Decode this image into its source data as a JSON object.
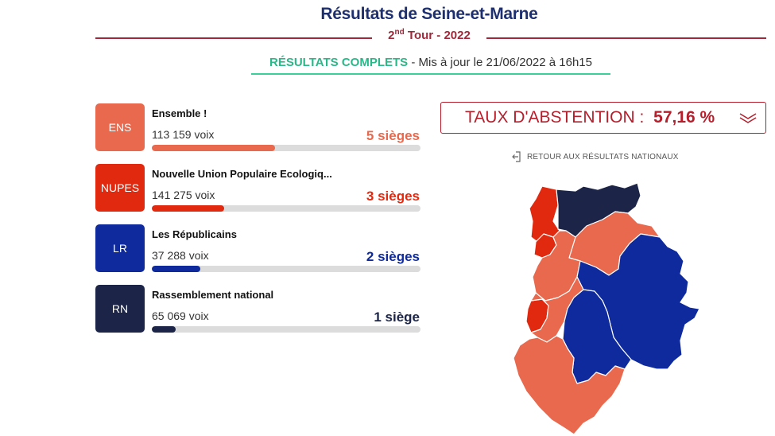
{
  "header": {
    "title": "Résultats de Seine-et-Marne",
    "round_prefix": "2",
    "round_sup": "nd",
    "round_suffix": " Tour - 2022"
  },
  "status": {
    "complete": "RÉSULTATS COMPLETS",
    "updated": " - Mis à jour le 21/06/2022 à 16h15"
  },
  "parties": [
    {
      "badge": "ENS",
      "name": "Ensemble !",
      "votes": "113 159 voix",
      "seats": "5 sièges",
      "color": "#e8694d",
      "share": 0.46
    },
    {
      "badge": "NUPES",
      "name": "Nouvelle Union Populaire Ecologiq...",
      "votes": "141 275 voix",
      "seats": "3 sièges",
      "color": "#e1290f",
      "share": 0.27
    },
    {
      "badge": "LR",
      "name": "Les Républicains",
      "votes": "37 288 voix",
      "seats": "2 sièges",
      "color": "#0e2a9c",
      "share": 0.18
    },
    {
      "badge": "RN",
      "name": "Rassemblement national",
      "votes": "65 069 voix",
      "seats": "1 siège",
      "color": "#1c2547",
      "share": 0.09
    }
  ],
  "abstention": {
    "label": "TAUX D'ABSTENTION : ",
    "value": "57,16 %",
    "color": "#b51e2b"
  },
  "back_link": "RETOUR AUX RÉSULTATS NATIONAUX",
  "map_colors": {
    "ens": "#e8694d",
    "nupes": "#e1290f",
    "lr": "#0e2a9c",
    "rn": "#1c2547"
  }
}
